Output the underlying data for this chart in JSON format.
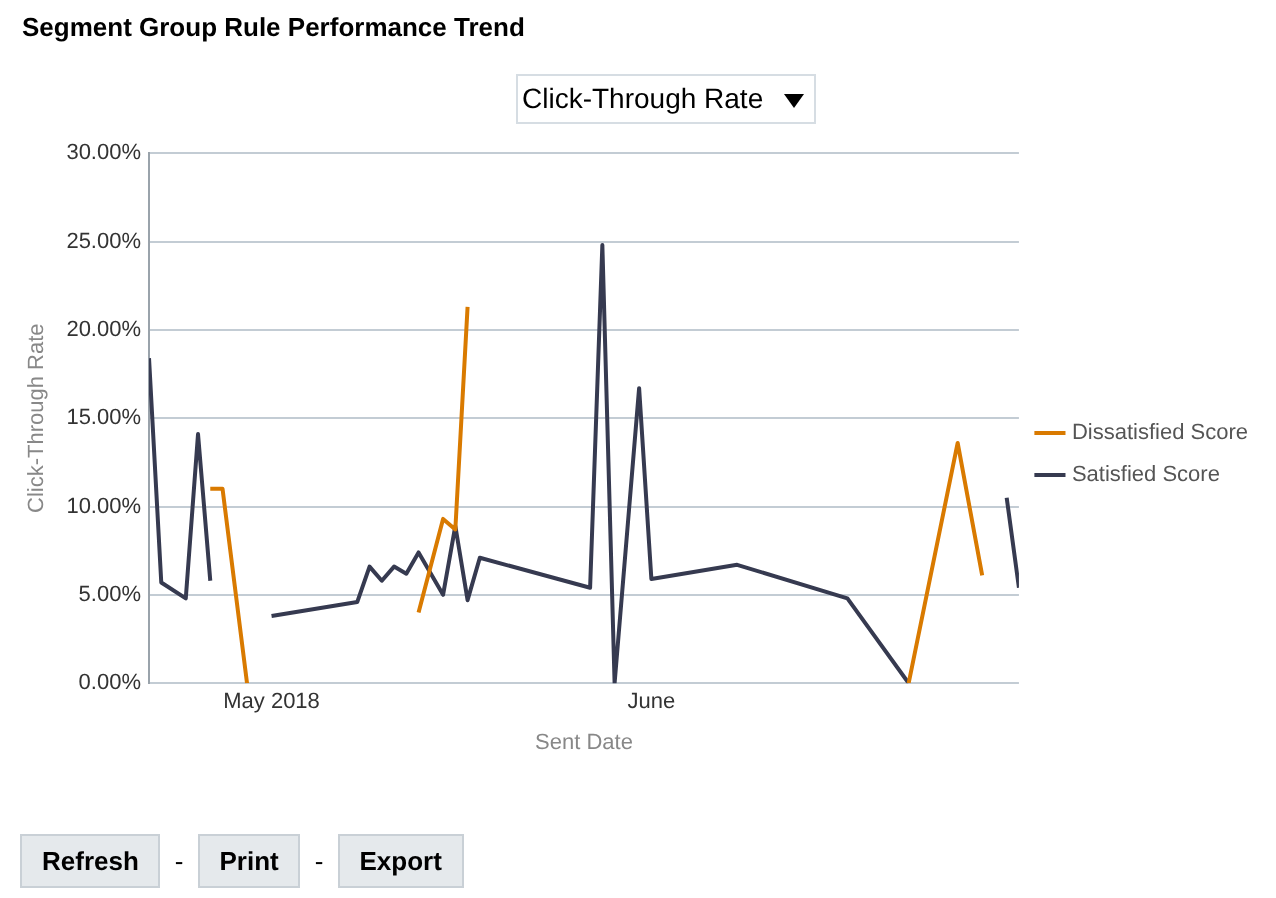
{
  "chart_data": {
    "type": "line",
    "title": "Segment Group Rule Performance Trend",
    "xlabel": "Sent Date",
    "ylabel": "Click-Through Rate",
    "annotations": [
      "Click-Through Rate",
      "Refresh",
      "-",
      "Print",
      "-",
      "Export"
    ],
    "xlim": [
      "2018-04-21",
      "2018-07-01"
    ],
    "xticks": [
      {
        "value": "2018-05-01",
        "label": "May 2018"
      },
      {
        "value": "2018-06-01",
        "label": "June"
      }
    ],
    "ylim": [
      0,
      30
    ],
    "yticks": [
      {
        "value": 0,
        "label": "0.00%"
      },
      {
        "value": 5,
        "label": "5.00%"
      },
      {
        "value": 10,
        "label": "10.00%"
      },
      {
        "value": 15,
        "label": "15.00%"
      },
      {
        "value": 20,
        "label": "20.00%"
      },
      {
        "value": 25,
        "label": "25.00%"
      },
      {
        "value": 30,
        "label": "30.00%"
      }
    ],
    "grid": "y",
    "legend": "right",
    "marker": "none",
    "line_style": "solid",
    "series": [
      {
        "name": "Dissatisfied Score",
        "color": "#d97a00",
        "x": [
          "2018-04-26",
          "2018-04-27",
          "2018-04-29",
          "2018-05-06",
          "2018-05-13",
          "2018-05-15",
          "2018-05-16",
          "2018-05-17",
          "2018-06-01",
          "2018-06-22",
          "2018-06-26",
          "2018-06-28"
        ],
        "values": [
          11.0,
          11.0,
          0,
          null,
          4.0,
          9.3,
          8.7,
          21.3,
          null,
          0,
          13.6,
          6.1
        ]
      },
      {
        "name": "Satisfied Score",
        "color": "#363a50",
        "x": [
          "2018-04-21",
          "2018-04-22",
          "2018-04-24",
          "2018-04-25",
          "2018-04-26",
          "2018-04-28",
          "2018-05-01",
          "2018-05-08",
          "2018-05-09",
          "2018-05-10",
          "2018-05-11",
          "2018-05-12",
          "2018-05-13",
          "2018-05-15",
          "2018-05-16",
          "2018-05-17",
          "2018-05-18",
          "2018-05-27",
          "2018-05-28",
          "2018-05-29",
          "2018-05-31",
          "2018-06-01",
          "2018-06-08",
          "2018-06-17",
          "2018-06-22",
          "2018-06-26",
          "2018-06-30",
          "2018-07-01"
        ],
        "values": [
          18.4,
          5.7,
          4.8,
          14.1,
          5.8,
          null,
          3.8,
          4.6,
          6.6,
          5.8,
          6.6,
          6.2,
          7.4,
          5.0,
          8.9,
          4.7,
          7.1,
          5.4,
          24.8,
          0,
          16.7,
          5.9,
          6.7,
          4.8,
          0,
          null,
          10.5,
          5.4
        ]
      }
    ]
  }
}
